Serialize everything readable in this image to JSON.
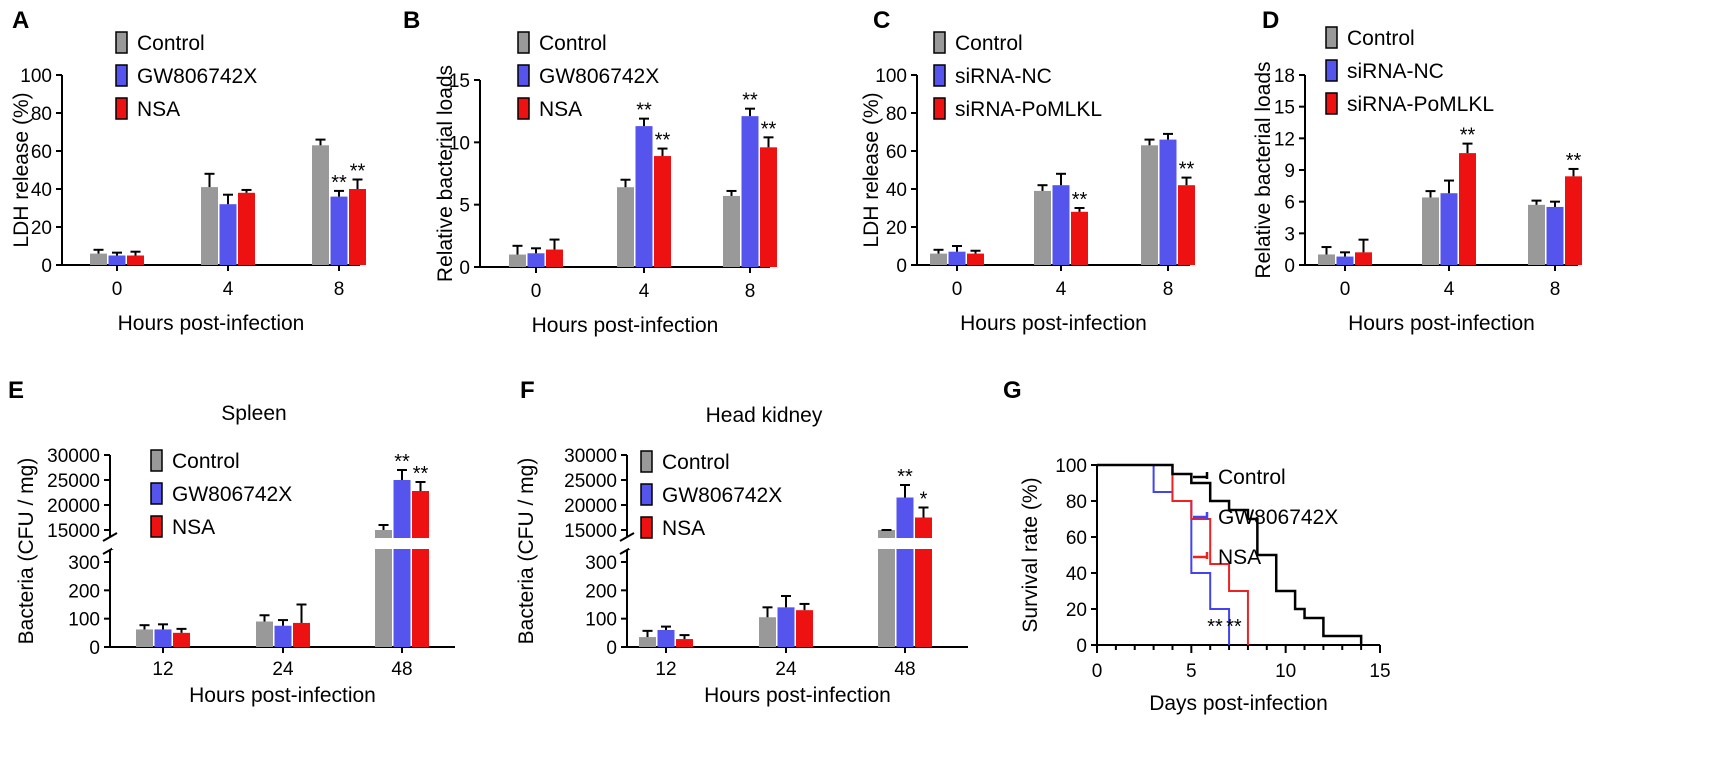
{
  "chart_data": [
    {
      "id": "A",
      "type": "bar",
      "panel_label": "A",
      "categories": [
        "0",
        "4",
        "8"
      ],
      "xlabel": "Hours post-infection",
      "ylabel": "LDH release (%)",
      "ylim": [
        0,
        100
      ],
      "yticks": [
        "0",
        "20",
        "40",
        "60",
        "80",
        "100"
      ],
      "series": [
        {
          "name": "Control",
          "color": "#999999",
          "values": [
            6,
            41,
            63
          ],
          "errors": [
            2,
            7,
            3
          ],
          "sig": [
            "",
            "",
            ""
          ]
        },
        {
          "name": "GW806742X",
          "color": "#5555EE",
          "values": [
            5,
            32,
            36
          ],
          "errors": [
            1.5,
            5,
            3
          ],
          "sig": [
            "",
            "",
            "**"
          ]
        },
        {
          "name": "NSA",
          "color": "#EE1111",
          "values": [
            5,
            38,
            40
          ],
          "errors": [
            2,
            1.5,
            5
          ],
          "sig": [
            "",
            "",
            "**"
          ]
        }
      ]
    },
    {
      "id": "B",
      "type": "bar",
      "panel_label": "B",
      "categories": [
        "0",
        "4",
        "8"
      ],
      "xlabel": "Hours post-infection",
      "ylabel": "Relative bacterial loads",
      "ylim": [
        0,
        15
      ],
      "yticks": [
        "0",
        "5",
        "10",
        "15"
      ],
      "series": [
        {
          "name": "Control",
          "color": "#999999",
          "values": [
            1,
            6.4,
            5.7
          ],
          "errors": [
            0.7,
            0.6,
            0.4
          ],
          "sig": [
            "",
            "",
            ""
          ]
        },
        {
          "name": "GW806742X",
          "color": "#5555EE",
          "values": [
            1.1,
            11.3,
            12.1
          ],
          "errors": [
            0.4,
            0.6,
            0.6
          ],
          "sig": [
            "",
            "**",
            "**"
          ]
        },
        {
          "name": "NSA",
          "color": "#EE1111",
          "values": [
            1.4,
            8.9,
            9.6
          ],
          "errors": [
            0.8,
            0.6,
            0.8
          ],
          "sig": [
            "",
            "**",
            "**"
          ]
        }
      ]
    },
    {
      "id": "C",
      "type": "bar",
      "panel_label": "C",
      "categories": [
        "0",
        "4",
        "8"
      ],
      "xlabel": "Hours post-infection",
      "ylabel": "LDH release (%)",
      "ylim": [
        0,
        100
      ],
      "yticks": [
        "0",
        "20",
        "40",
        "60",
        "80",
        "100"
      ],
      "series": [
        {
          "name": "Control",
          "color": "#999999",
          "values": [
            6,
            39,
            63
          ],
          "errors": [
            2,
            3,
            3
          ],
          "sig": [
            "",
            "",
            ""
          ]
        },
        {
          "name": "siRNA-NC",
          "color": "#5555EE",
          "values": [
            7,
            42,
            66
          ],
          "errors": [
            3,
            6,
            3
          ],
          "sig": [
            "",
            "",
            ""
          ]
        },
        {
          "name": "siRNA-PoMLKL",
          "color": "#EE1111",
          "values": [
            6,
            28,
            42
          ],
          "errors": [
            1.5,
            2,
            4
          ],
          "sig": [
            "",
            "**",
            "**"
          ]
        }
      ]
    },
    {
      "id": "D",
      "type": "bar",
      "panel_label": "D",
      "categories": [
        "0",
        "4",
        "8"
      ],
      "xlabel": "Hours post-infection",
      "ylabel": "Relative bacterial loads",
      "ylim": [
        0,
        18
      ],
      "yticks": [
        "0",
        "3",
        "6",
        "9",
        "12",
        "15",
        "18"
      ],
      "series": [
        {
          "name": "Control",
          "color": "#999999",
          "values": [
            1,
            6.4,
            5.7
          ],
          "errors": [
            0.7,
            0.6,
            0.4
          ],
          "sig": [
            "",
            "",
            ""
          ]
        },
        {
          "name": "siRNA-NC",
          "color": "#5555EE",
          "values": [
            0.8,
            6.8,
            5.5
          ],
          "errors": [
            0.4,
            1.2,
            0.5
          ],
          "sig": [
            "",
            "",
            ""
          ]
        },
        {
          "name": "siRNA-PoMLKL",
          "color": "#EE1111",
          "values": [
            1.2,
            10.6,
            8.4
          ],
          "errors": [
            1.2,
            0.9,
            0.7
          ],
          "sig": [
            "",
            "**",
            "**"
          ]
        }
      ]
    },
    {
      "id": "E",
      "type": "bar",
      "panel_label": "E",
      "title": "Spleen",
      "categories": [
        "12",
        "24",
        "48"
      ],
      "xlabel": "Hours post-infection",
      "ylabel": "Bacteria (CFU / mg)",
      "ylim_lower": [
        0,
        300
      ],
      "ylim_upper": [
        15000,
        30000
      ],
      "yticks": [
        "0",
        "100",
        "200",
        "300",
        "15000",
        "20000",
        "25000",
        "30000"
      ],
      "series": [
        {
          "name": "Control",
          "color": "#999999",
          "values": [
            62,
            90,
            14500
          ],
          "errors": [
            15,
            22,
            1500
          ],
          "sig": [
            "",
            "",
            ""
          ]
        },
        {
          "name": "GW806742X",
          "color": "#5555EE",
          "values": [
            62,
            75,
            25000
          ],
          "errors": [
            18,
            20,
            2000
          ],
          "sig": [
            "",
            "",
            "**"
          ]
        },
        {
          "name": "NSA",
          "color": "#EE1111",
          "values": [
            50,
            85,
            22800
          ],
          "errors": [
            14,
            65,
            1800
          ],
          "sig": [
            "",
            "",
            "**"
          ]
        }
      ]
    },
    {
      "id": "F",
      "type": "bar",
      "panel_label": "F",
      "title": "Head kidney",
      "categories": [
        "12",
        "24",
        "48"
      ],
      "xlabel": "Hours post-infection",
      "ylabel": "Bacteria (CFU / mg)",
      "ylim_lower": [
        0,
        300
      ],
      "ylim_upper": [
        15000,
        30000
      ],
      "yticks": [
        "0",
        "100",
        "200",
        "300",
        "15000",
        "20000",
        "25000",
        "30000"
      ],
      "series": [
        {
          "name": "Control",
          "color": "#999999",
          "values": [
            35,
            105,
            11000
          ],
          "errors": [
            22,
            35,
            1200
          ],
          "sig": [
            "",
            "",
            ""
          ]
        },
        {
          "name": "GW806742X",
          "color": "#5555EE",
          "values": [
            60,
            140,
            21500
          ],
          "errors": [
            12,
            40,
            2500
          ],
          "sig": [
            "",
            "",
            "**"
          ]
        },
        {
          "name": "NSA",
          "color": "#EE1111",
          "values": [
            28,
            130,
            17500
          ],
          "errors": [
            14,
            22,
            2000
          ],
          "sig": [
            "",
            "",
            "*"
          ]
        }
      ]
    },
    {
      "id": "G",
      "type": "line",
      "panel_label": "G",
      "xlabel": "Days post-infection",
      "ylabel": "Survival rate (%)",
      "xlim": [
        0,
        15
      ],
      "ylim": [
        0,
        100
      ],
      "xticks": [
        "0",
        "5",
        "10",
        "15"
      ],
      "yticks": [
        "0",
        "20",
        "40",
        "60",
        "80",
        "100"
      ],
      "series": [
        {
          "name": "Control",
          "color": "#000000",
          "step": [
            [
              0,
              100
            ],
            [
              4,
              100
            ],
            [
              4,
              95
            ],
            [
              5,
              95
            ],
            [
              5,
              90
            ],
            [
              6,
              90
            ],
            [
              6,
              80
            ],
            [
              7,
              80
            ],
            [
              7,
              75
            ],
            [
              8,
              75
            ],
            [
              8,
              70
            ],
            [
              8.5,
              70
            ],
            [
              8.5,
              50
            ],
            [
              9.5,
              50
            ],
            [
              9.5,
              30
            ],
            [
              10.5,
              30
            ],
            [
              10.5,
              20
            ],
            [
              11,
              20
            ],
            [
              11,
              15
            ],
            [
              12,
              15
            ],
            [
              12,
              5
            ],
            [
              14,
              5
            ],
            [
              14,
              0
            ]
          ],
          "sig": ""
        },
        {
          "name": "GW806742X",
          "color": "#4444EE",
          "step": [
            [
              0,
              100
            ],
            [
              3,
              100
            ],
            [
              3,
              85
            ],
            [
              4,
              85
            ],
            [
              4,
              80
            ],
            [
              5,
              80
            ],
            [
              5,
              40
            ],
            [
              6,
              40
            ],
            [
              6,
              20
            ],
            [
              7,
              20
            ],
            [
              7,
              0
            ]
          ],
          "sig": "**"
        },
        {
          "name": "NSA",
          "color": "#EE2222",
          "step": [
            [
              0,
              100
            ],
            [
              4,
              100
            ],
            [
              4,
              80
            ],
            [
              5,
              80
            ],
            [
              5,
              70
            ],
            [
              6,
              70
            ],
            [
              6,
              45
            ],
            [
              7,
              45
            ],
            [
              7,
              30
            ],
            [
              8,
              30
            ],
            [
              8,
              0
            ]
          ],
          "sig": "**"
        }
      ]
    }
  ]
}
